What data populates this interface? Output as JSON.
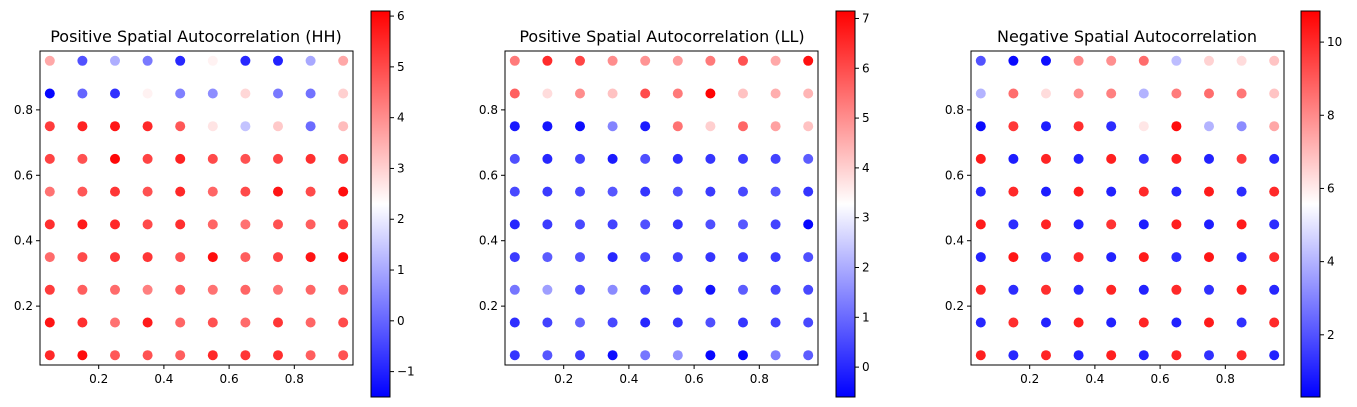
{
  "chart_data": [
    {
      "type": "scatter",
      "title": "Positive Spatial Autocorrelation (HH)",
      "xlabel": "",
      "ylabel": "",
      "x_ticks": [
        "0.2",
        "0.4",
        "0.6",
        "0.8"
      ],
      "y_ticks": [
        "0.2",
        "0.4",
        "0.6",
        "0.8"
      ],
      "xlim": [
        0.02,
        0.98
      ],
      "ylim": [
        0.02,
        0.98
      ],
      "colormap": "bwr",
      "colorbar": {
        "min": -1.5,
        "max": 6.1,
        "ticks": [
          "-1",
          "0",
          "1",
          "2",
          "3",
          "4",
          "5",
          "6"
        ]
      },
      "grid": false,
      "x": [
        0.05,
        0.15,
        0.25,
        0.35,
        0.45,
        0.55,
        0.65,
        0.75,
        0.85,
        0.95
      ],
      "y": [
        0.95,
        0.85,
        0.75,
        0.65,
        0.55,
        0.45,
        0.35,
        0.25,
        0.15,
        0.05
      ],
      "values": [
        [
          3.6,
          -0.3,
          1.1,
          0.3,
          -0.9,
          2.5,
          -0.9,
          -1.0,
          1.0,
          3.6
        ],
        [
          -1.4,
          0.0,
          -0.8,
          2.5,
          0.4,
          0.6,
          2.9,
          0.3,
          0.2,
          3.0
        ],
        [
          5.2,
          5.6,
          5.8,
          5.5,
          4.8,
          2.7,
          1.4,
          3.1,
          0.1,
          3.3
        ],
        [
          5.1,
          4.9,
          6.0,
          5.1,
          5.6,
          5.0,
          4.9,
          5.1,
          5.4,
          5.3
        ],
        [
          4.4,
          4.8,
          5.3,
          4.9,
          5.5,
          4.6,
          5.0,
          5.8,
          5.0,
          5.9
        ],
        [
          5.4,
          5.7,
          5.5,
          5.0,
          5.4,
          4.6,
          4.4,
          4.9,
          4.7,
          5.2
        ],
        [
          4.5,
          5.0,
          5.3,
          5.3,
          4.9,
          5.9,
          4.7,
          5.1,
          5.8,
          6.0
        ],
        [
          5.2,
          4.7,
          4.5,
          4.2,
          4.7,
          4.4,
          4.6,
          4.4,
          4.6,
          4.7
        ],
        [
          5.8,
          5.4,
          4.4,
          5.7,
          4.6,
          4.9,
          4.5,
          5.3,
          4.6,
          5.0
        ],
        [
          5.5,
          5.9,
          4.8,
          4.9,
          4.7,
          5.5,
          5.3,
          5.4,
          4.7,
          4.9
        ]
      ]
    },
    {
      "type": "scatter",
      "title": "Positive Spatial Autocorrelation (LL)",
      "xlabel": "",
      "ylabel": "",
      "x_ticks": [
        "0.2",
        "0.4",
        "0.6",
        "0.8"
      ],
      "y_ticks": [
        "0.2",
        "0.4",
        "0.6",
        "0.8"
      ],
      "xlim": [
        0.02,
        0.98
      ],
      "ylim": [
        0.02,
        0.98
      ],
      "colormap": "bwr",
      "colorbar": {
        "min": -0.6,
        "max": 7.15,
        "ticks": [
          "0",
          "1",
          "2",
          "3",
          "4",
          "5",
          "6",
          "7"
        ]
      },
      "grid": false,
      "x": [
        0.05,
        0.15,
        0.25,
        0.35,
        0.45,
        0.55,
        0.65,
        0.75,
        0.85,
        0.95
      ],
      "y": [
        0.95,
        0.85,
        0.75,
        0.65,
        0.55,
        0.45,
        0.35,
        0.25,
        0.15,
        0.05
      ],
      "values": [
        [
          5.3,
          6.5,
          6.1,
          5.0,
          4.9,
          4.8,
          5.3,
          5.9,
          4.6,
          6.9
        ],
        [
          5.7,
          3.8,
          5.0,
          4.2,
          6.0,
          5.3,
          7.1,
          4.2,
          4.5,
          4.4
        ],
        [
          -0.2,
          -0.3,
          -0.4,
          1.4,
          -0.2,
          5.4,
          4.0,
          5.6,
          4.7,
          4.2
        ],
        [
          0.6,
          0.0,
          0.4,
          -0.2,
          0.6,
          0.1,
          0.2,
          0.3,
          0.4,
          0.8
        ],
        [
          0.5,
          0.3,
          0.5,
          0.7,
          0.2,
          0.6,
          0.3,
          0.5,
          0.7,
          0.2
        ],
        [
          0.0,
          0.3,
          0.5,
          0.4,
          0.6,
          0.2,
          0.6,
          0.7,
          0.4,
          -0.5
        ],
        [
          0.3,
          0.8,
          0.6,
          0.0,
          0.5,
          0.4,
          0.2,
          0.3,
          0.3,
          0.6
        ],
        [
          1.2,
          1.8,
          0.6,
          1.5,
          0.5,
          0.2,
          -0.3,
          0.8,
          0.5,
          0.5
        ],
        [
          0.1,
          0.4,
          0.9,
          0.5,
          0.0,
          0.2,
          0.6,
          0.2,
          0.4,
          0.5
        ],
        [
          0.2,
          0.7,
          0.3,
          -0.4,
          1.2,
          1.6,
          -0.5,
          -0.5,
          1.3,
          0.8
        ]
      ]
    },
    {
      "type": "scatter",
      "title": "Negative Spatial Autocorrelation",
      "xlabel": "",
      "ylabel": "",
      "x_ticks": [
        "0.2",
        "0.4",
        "0.6",
        "0.8"
      ],
      "y_ticks": [
        "0.2",
        "0.4",
        "0.6",
        "0.8"
      ],
      "xlim": [
        0.02,
        0.98
      ],
      "ylim": [
        0.02,
        0.98
      ],
      "colormap": "bwr",
      "colorbar": {
        "min": 0.3,
        "max": 10.85,
        "ticks": [
          "2",
          "4",
          "6",
          "8",
          "10"
        ]
      },
      "grid": false,
      "x": [
        0.05,
        0.15,
        0.25,
        0.35,
        0.45,
        0.55,
        0.65,
        0.75,
        0.85,
        0.95
      ],
      "y": [
        0.95,
        0.85,
        0.75,
        0.65,
        0.55,
        0.45,
        0.35,
        0.25,
        0.15,
        0.05
      ],
      "values": [
        [
          2.0,
          0.5,
          0.6,
          8.0,
          7.9,
          8.6,
          4.2,
          6.5,
          6.3,
          6.8
        ],
        [
          4.0,
          8.6,
          6.3,
          7.9,
          8.2,
          4.0,
          8.3,
          8.6,
          8.4,
          6.8
        ],
        [
          0.5,
          9.7,
          0.9,
          9.9,
          1.2,
          6.1,
          10.6,
          4.0,
          3.2,
          7.4
        ],
        [
          10.3,
          0.9,
          10.1,
          1.0,
          10.2,
          1.3,
          10.2,
          1.0,
          9.6,
          1.1
        ],
        [
          1.1,
          10.0,
          0.9,
          10.3,
          1.0,
          10.0,
          1.1,
          10.3,
          1.2,
          10.0
        ],
        [
          10.3,
          1.2,
          10.1,
          1.0,
          9.8,
          0.9,
          10.2,
          0.9,
          10.3,
          1.2
        ],
        [
          1.0,
          10.4,
          1.3,
          10.0,
          1.0,
          10.3,
          1.2,
          10.4,
          1.1,
          9.9
        ],
        [
          10.1,
          1.2,
          9.9,
          1.1,
          10.1,
          1.0,
          10.0,
          1.3,
          10.2,
          1.1
        ],
        [
          1.1,
          9.9,
          1.0,
          10.2,
          1.0,
          10.1,
          1.0,
          10.3,
          1.3,
          10.0
        ],
        [
          10.2,
          1.1,
          10.1,
          1.0,
          10.2,
          1.0,
          10.1,
          1.3,
          10.0,
          1.0
        ]
      ]
    }
  ]
}
